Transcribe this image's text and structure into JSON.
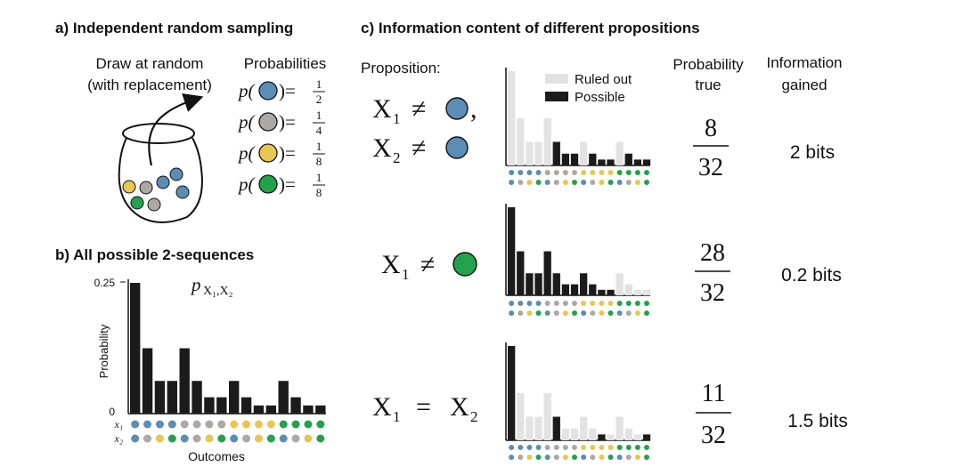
{
  "colors": {
    "blue": "#5b8db5",
    "gray": "#ada8a3",
    "yellow": "#e8c750",
    "green": "#22a24c",
    "bar": "#1b1b1b",
    "bar_ruled_out": "#e3e3e3"
  },
  "panel_a": {
    "title": "a) Independent random sampling",
    "draw_line1": "Draw at random",
    "draw_line2": "(with replacement)",
    "prob_header": "Probabilities",
    "p_fn": "p(",
    "p_close": ")=",
    "probs": [
      {
        "color": "blue",
        "num": "1",
        "den": "2"
      },
      {
        "color": "gray",
        "num": "1",
        "den": "4"
      },
      {
        "color": "yellow",
        "num": "1",
        "den": "8"
      },
      {
        "color": "green",
        "num": "1",
        "den": "8"
      }
    ],
    "jar_marbles": [
      "yellow",
      "gray",
      "blue",
      "blue",
      "green",
      "gray",
      "blue"
    ]
  },
  "panel_b": {
    "title": "b) All possible 2-sequences",
    "dist_label": "p",
    "dist_sub": "X₁,X₂",
    "ylabel": "Probability",
    "xlabel": "Outcomes",
    "ytick_top": "0.25",
    "ytick_zero": "0",
    "x1_label": "x₁",
    "x2_label": "x₂"
  },
  "panel_c": {
    "title": "c) Information content of different propositions",
    "prop_header": "Proposition:",
    "prob_header_line1": "Probability",
    "prob_header_line2": "true",
    "info_header_line1": "Information",
    "info_header_line2": "gained",
    "legend_ruled_out": "Ruled out",
    "legend_possible": "Possible",
    "rows": [
      {
        "num": "8",
        "den": "32",
        "info": "2 bits"
      },
      {
        "num": "28",
        "den": "32",
        "info": "0.2 bits"
      },
      {
        "num": "11",
        "den": "32",
        "info": "1.5 bits"
      }
    ],
    "prop1": {
      "x1": "X",
      "x2": "X",
      "sub1": "1",
      "sub2": "2",
      "op": "≠",
      "comma": ","
    },
    "prop2": {
      "x": "X",
      "sub": "1",
      "op": "≠"
    },
    "prop3": {
      "x1": "X",
      "x2": "X",
      "sub1": "1",
      "sub2": "2",
      "op": "="
    }
  },
  "chart_data": {
    "type": "bar",
    "title": "p X1,X2",
    "xlabel": "Outcomes",
    "ylabel": "Probability",
    "ylim": [
      0,
      0.25
    ],
    "x1": [
      "blue",
      "blue",
      "blue",
      "blue",
      "gray",
      "gray",
      "gray",
      "gray",
      "yellow",
      "yellow",
      "yellow",
      "yellow",
      "green",
      "green",
      "green",
      "green"
    ],
    "x2": [
      "blue",
      "gray",
      "yellow",
      "green",
      "blue",
      "gray",
      "yellow",
      "green",
      "blue",
      "gray",
      "yellow",
      "green",
      "blue",
      "gray",
      "yellow",
      "green"
    ],
    "values": [
      0.25,
      0.125,
      0.0625,
      0.0625,
      0.125,
      0.0625,
      0.03125,
      0.03125,
      0.0625,
      0.03125,
      0.015625,
      0.015625,
      0.0625,
      0.03125,
      0.015625,
      0.015625
    ],
    "propositions": [
      {
        "name": "X1 != blue, X2 != blue",
        "possible": [
          false,
          false,
          false,
          false,
          false,
          true,
          true,
          true,
          false,
          true,
          true,
          true,
          false,
          true,
          true,
          true
        ]
      },
      {
        "name": "X1 != green",
        "possible": [
          true,
          true,
          true,
          true,
          true,
          true,
          true,
          true,
          true,
          true,
          true,
          true,
          false,
          false,
          false,
          false
        ]
      },
      {
        "name": "X1 = X2",
        "possible": [
          true,
          false,
          false,
          false,
          false,
          true,
          false,
          false,
          false,
          false,
          true,
          false,
          false,
          false,
          false,
          true
        ]
      }
    ]
  }
}
